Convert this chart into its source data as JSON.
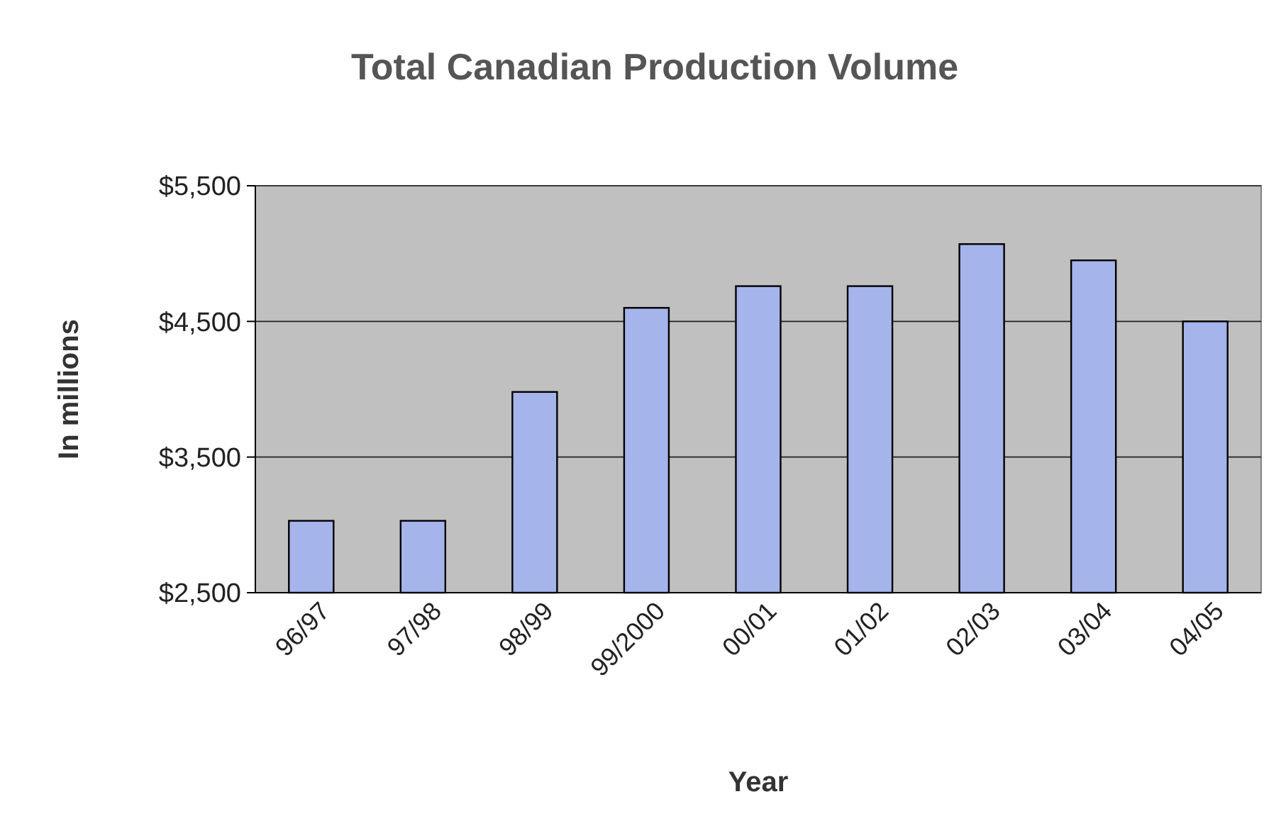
{
  "chart_data": {
    "type": "bar",
    "title": "Total Canadian Production Volume",
    "xlabel": "Year",
    "ylabel": "In millions",
    "categories": [
      "96/97",
      "97/98",
      "98/99",
      "99/2000",
      "00/01",
      "01/02",
      "02/03",
      "03/04",
      "04/05"
    ],
    "values": [
      3030,
      3030,
      3980,
      4600,
      4760,
      4760,
      5070,
      4950,
      4500
    ],
    "color": "#a6b4ec",
    "ylim": [
      2500,
      5500
    ],
    "yticks": [
      {
        "value": 2500,
        "label": "$2,500"
      },
      {
        "value": 3500,
        "label": "$3,500"
      },
      {
        "value": 4500,
        "label": "$4,500"
      },
      {
        "value": 5500,
        "label": "$5,500"
      }
    ],
    "grid": "y"
  }
}
